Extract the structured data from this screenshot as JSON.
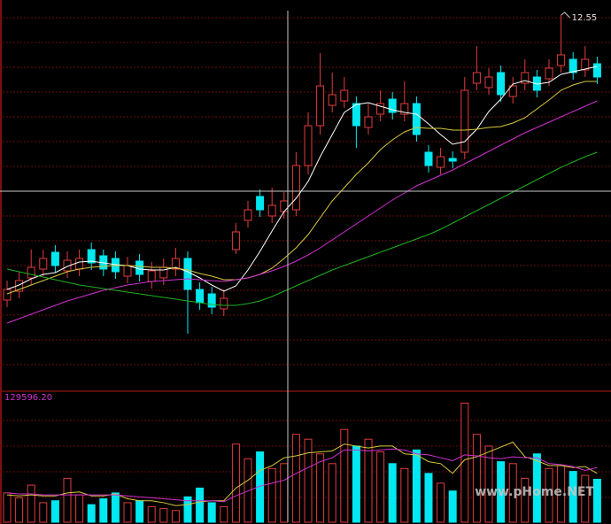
{
  "chart_data": {
    "type": "candlestick",
    "open": [
      9.33,
      9.43,
      9.58,
      9.68,
      9.87,
      9.66,
      9.68,
      9.9,
      9.83,
      9.8,
      9.6,
      9.77,
      9.54,
      9.58,
      9.68,
      9.8,
      9.45,
      9.4,
      9.23,
      9.9,
      10.23,
      10.5,
      10.28,
      10.33,
      10.35,
      10.85,
      11.3,
      11.53,
      11.58,
      11.55,
      11.28,
      11.43,
      11.6,
      11.43,
      11.55,
      11.0,
      10.83,
      10.93,
      11.0,
      11.78,
      11.73,
      11.9,
      11.63,
      11.78,
      11.85,
      11.83,
      11.98,
      12.05,
      11.93,
      12.0
    ],
    "high": [
      9.55,
      9.65,
      9.9,
      9.9,
      9.95,
      9.88,
      9.9,
      9.98,
      9.9,
      9.88,
      9.82,
      9.85,
      9.76,
      9.8,
      9.92,
      9.88,
      9.53,
      9.48,
      9.45,
      10.2,
      10.45,
      10.58,
      10.6,
      10.55,
      11.0,
      11.45,
      12.12,
      11.9,
      11.85,
      11.63,
      11.55,
      11.7,
      11.68,
      11.8,
      11.63,
      11.08,
      11.05,
      11.01,
      11.85,
      12.2,
      11.95,
      11.98,
      11.85,
      12.05,
      11.93,
      12.05,
      12.55,
      12.13,
      12.2,
      12.08
    ],
    "low": [
      9.25,
      9.35,
      9.5,
      9.6,
      9.64,
      9.58,
      9.6,
      9.67,
      9.6,
      9.57,
      9.52,
      9.54,
      9.46,
      9.5,
      9.6,
      8.95,
      9.22,
      9.17,
      9.15,
      9.85,
      10.15,
      10.27,
      10.2,
      10.25,
      10.28,
      10.75,
      11.2,
      11.45,
      11.5,
      11.05,
      11.2,
      11.35,
      11.37,
      11.35,
      11.12,
      10.77,
      10.75,
      10.82,
      10.92,
      11.7,
      11.65,
      11.57,
      11.55,
      11.7,
      11.62,
      11.75,
      11.9,
      11.82,
      11.85,
      11.77
    ],
    "close": [
      9.45,
      9.55,
      9.7,
      9.8,
      9.72,
      9.78,
      9.8,
      9.75,
      9.68,
      9.65,
      9.72,
      9.62,
      9.66,
      9.7,
      9.8,
      9.45,
      9.3,
      9.25,
      9.35,
      10.1,
      10.35,
      10.35,
      10.4,
      10.45,
      10.85,
      11.3,
      11.75,
      11.65,
      11.7,
      11.3,
      11.4,
      11.55,
      11.45,
      11.55,
      11.2,
      10.85,
      10.95,
      10.9,
      11.7,
      11.9,
      11.85,
      11.65,
      11.75,
      11.9,
      11.7,
      11.95,
      12.1,
      11.9,
      12.05,
      11.85
    ],
    "ylim": [
      8.3,
      12.72
    ],
    "up_color": "#e03c3c",
    "down_color": "#00e8f0",
    "ma": [
      {
        "color": "#ffffff",
        "values": [
          9.45,
          9.5,
          9.57,
          9.62,
          9.64,
          9.71,
          9.76,
          9.77,
          9.75,
          9.73,
          9.72,
          9.68,
          9.67,
          9.67,
          9.7,
          9.65,
          9.58,
          9.5,
          9.43,
          9.49,
          9.67,
          9.88,
          10.11,
          10.33,
          10.48,
          10.67,
          10.95,
          11.2,
          11.45,
          11.54,
          11.56,
          11.52,
          11.48,
          11.45,
          11.43,
          11.32,
          11.2,
          11.09,
          11.12,
          11.26,
          11.46,
          11.6,
          11.77,
          11.81,
          11.77,
          11.79,
          11.88,
          11.91,
          11.94,
          11.97
        ]
      },
      {
        "color": "#d8c83c",
        "values": [
          9.4,
          9.45,
          9.5,
          9.55,
          9.6,
          9.65,
          9.68,
          9.7,
          9.71,
          9.72,
          9.72,
          9.71,
          9.7,
          9.7,
          9.69,
          9.67,
          9.63,
          9.6,
          9.56,
          9.56,
          9.58,
          9.62,
          9.69,
          9.8,
          9.92,
          10.07,
          10.26,
          10.45,
          10.6,
          10.75,
          10.88,
          11.03,
          11.14,
          11.23,
          11.28,
          11.27,
          11.27,
          11.25,
          11.25,
          11.26,
          11.28,
          11.29,
          11.33,
          11.39,
          11.49,
          11.59,
          11.7,
          11.76,
          11.8,
          11.8
        ]
      },
      {
        "color": "#d030d0",
        "values": [
          9.07,
          9.12,
          9.17,
          9.22,
          9.27,
          9.32,
          9.36,
          9.4,
          9.44,
          9.47,
          9.5,
          9.52,
          9.54,
          9.55,
          9.56,
          9.57,
          9.56,
          9.55,
          9.54,
          9.56,
          9.58,
          9.62,
          9.66,
          9.71,
          9.77,
          9.84,
          9.92,
          10.01,
          10.1,
          10.19,
          10.28,
          10.37,
          10.46,
          10.54,
          10.62,
          10.68,
          10.74,
          10.8,
          10.87,
          10.94,
          11.01,
          11.08,
          11.15,
          11.22,
          11.28,
          11.34,
          11.4,
          11.46,
          11.52,
          11.58
        ]
      },
      {
        "color": "#20b020",
        "values": [
          9.68,
          9.65,
          9.62,
          9.59,
          9.56,
          9.53,
          9.5,
          9.48,
          9.46,
          9.44,
          9.42,
          9.4,
          9.38,
          9.36,
          9.34,
          9.32,
          9.3,
          9.28,
          9.27,
          9.27,
          9.29,
          9.32,
          9.37,
          9.43,
          9.49,
          9.55,
          9.61,
          9.67,
          9.72,
          9.77,
          9.82,
          9.87,
          9.92,
          9.97,
          10.02,
          10.07,
          10.13,
          10.2,
          10.27,
          10.34,
          10.41,
          10.48,
          10.55,
          10.62,
          10.69,
          10.76,
          10.83,
          10.89,
          10.95,
          11.0
        ]
      }
    ],
    "high_label": {
      "value": 12.55,
      "label": "12.55"
    },
    "volume": {
      "label": {
        "value": 129596.2,
        "label": "129596.20"
      },
      "values": [
        30000,
        25000,
        38000,
        20000,
        22000,
        45000,
        28000,
        18000,
        24000,
        30000,
        20000,
        22000,
        16000,
        14000,
        12000,
        26000,
        35000,
        20000,
        16000,
        80000,
        65000,
        72000,
        55000,
        60000,
        90000,
        85000,
        70000,
        60000,
        95000,
        78000,
        85000,
        72000,
        60000,
        55000,
        74000,
        50000,
        40000,
        32000,
        122000,
        90000,
        78000,
        62000,
        60000,
        45000,
        70000,
        55000,
        58000,
        52000,
        48000,
        44000
      ],
      "ma": [
        {
          "color": "#d8c83c",
          "values": [
            28000,
            27000,
            28000,
            27000,
            27000,
            30000,
            31000,
            27000,
            27000,
            29000,
            24000,
            22000,
            22000,
            20000,
            17000,
            18000,
            21000,
            22000,
            22000,
            35000,
            43000,
            53000,
            58000,
            66000,
            68000,
            71000,
            72000,
            73000,
            80000,
            78000,
            76000,
            78000,
            78000,
            70000,
            69000,
            62000,
            60000,
            50000,
            64000,
            67000,
            72000,
            77000,
            82000,
            67000,
            63000,
            58000,
            58000,
            56000,
            57000,
            50000
          ]
        },
        {
          "color": "#d030d0",
          "values": [
            30000,
            29000,
            29000,
            28000,
            28000,
            28000,
            28000,
            28000,
            28000,
            28000,
            27000,
            26000,
            25000,
            24000,
            23000,
            22000,
            22000,
            22000,
            21000,
            27000,
            32000,
            37000,
            40000,
            43000,
            50000,
            56000,
            62000,
            66000,
            74000,
            74000,
            73000,
            74000,
            75000,
            74000,
            70000,
            69000,
            66000,
            63000,
            69000,
            68000,
            66000,
            65000,
            67000,
            66000,
            66000,
            60000,
            59000,
            57000,
            53000,
            56000
          ]
        }
      ]
    },
    "watermark": "www.pHome.NET"
  }
}
